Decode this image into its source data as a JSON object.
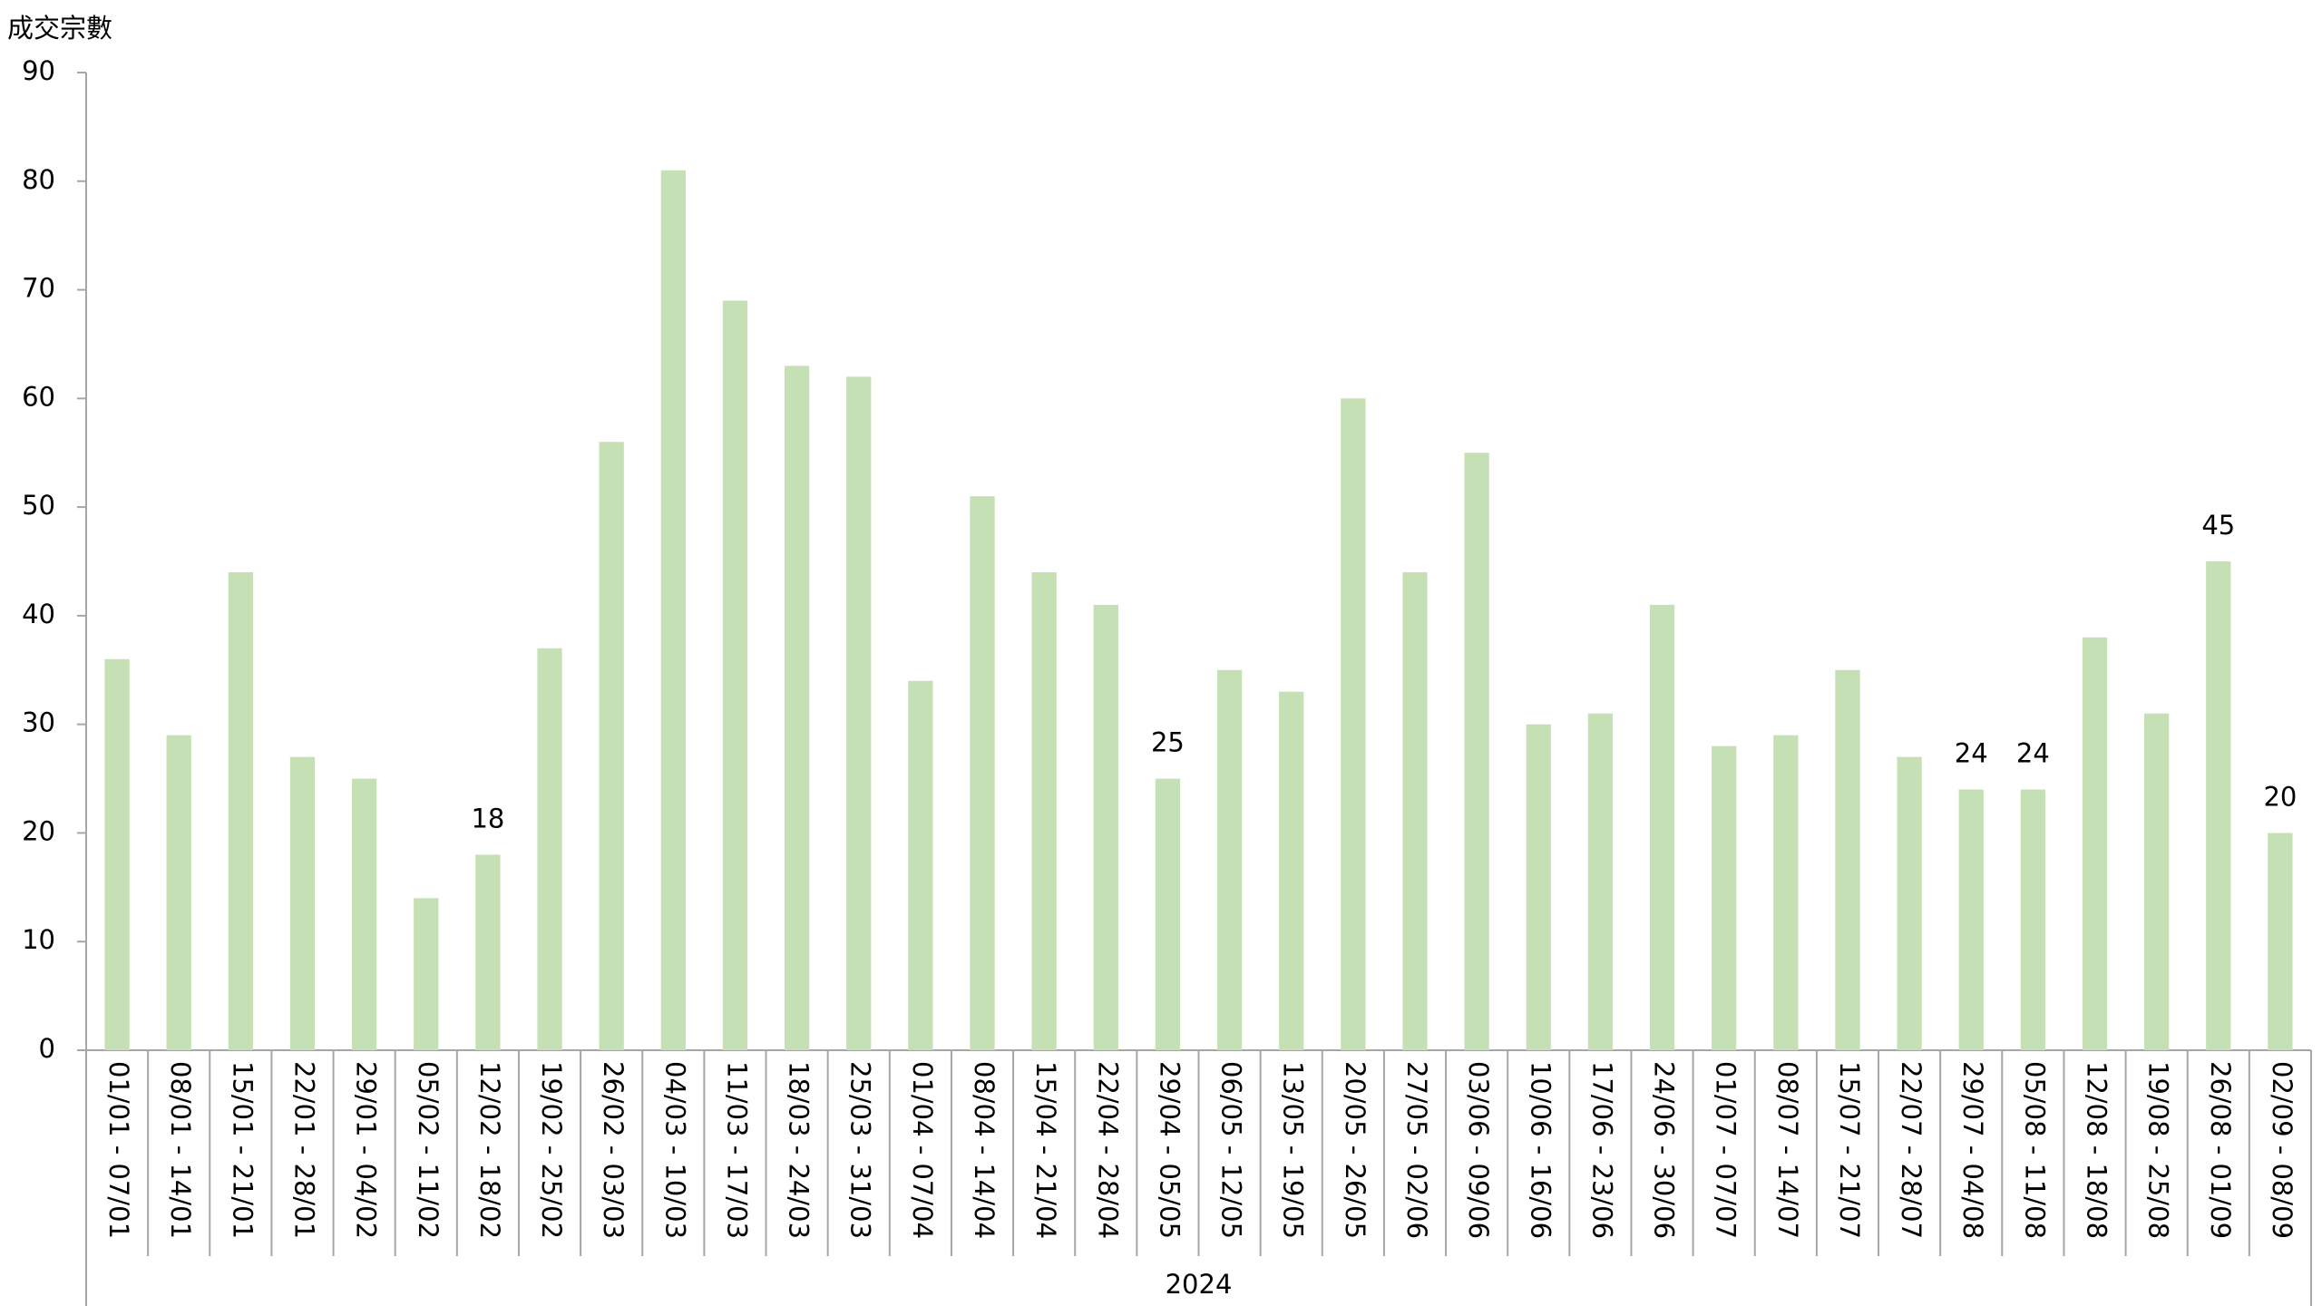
{
  "chart_data": {
    "type": "bar",
    "y_label": "成交宗數",
    "group_label": "2024",
    "categories": [
      "01/01 - 07/01",
      "08/01 - 14/01",
      "15/01 - 21/01",
      "22/01 - 28/01",
      "29/01 - 04/02",
      "05/02 - 11/02",
      "12/02 - 18/02",
      "19/02 - 25/02",
      "26/02 - 03/03",
      "04/03 - 10/03",
      "11/03 - 17/03",
      "18/03 - 24/03",
      "25/03 - 31/03",
      "01/04 - 07/04",
      "08/04 - 14/04",
      "15/04 - 21/04",
      "22/04 - 28/04",
      "29/04 - 05/05",
      "06/05 - 12/05",
      "13/05 - 19/05",
      "20/05 - 26/05",
      "27/05 - 02/06",
      "03/06 - 09/06",
      "10/06 - 16/06",
      "17/06 - 23/06",
      "24/06 - 30/06",
      "01/07 - 07/07",
      "08/07 - 14/07",
      "15/07 - 21/07",
      "22/07 - 28/07",
      "29/07 - 04/08",
      "05/08 - 11/08",
      "12/08 - 18/08",
      "19/08 - 25/08",
      "26/08 - 01/09",
      "02/09 - 08/09"
    ],
    "values": [
      36,
      29,
      44,
      27,
      25,
      14,
      18,
      37,
      56,
      81,
      69,
      63,
      62,
      34,
      51,
      44,
      41,
      25,
      35,
      33,
      60,
      44,
      55,
      30,
      31,
      41,
      28,
      29,
      35,
      27,
      24,
      24,
      38,
      31,
      45,
      20
    ],
    "value_labels": [
      null,
      null,
      null,
      null,
      null,
      null,
      "18",
      null,
      null,
      null,
      null,
      null,
      null,
      null,
      null,
      null,
      null,
      "25",
      null,
      null,
      null,
      null,
      null,
      null,
      null,
      null,
      null,
      null,
      null,
      null,
      "24",
      "24",
      null,
      null,
      "45",
      "20"
    ],
    "color": "#c5e0b4",
    "ylim": [
      0,
      90
    ],
    "yticks": [
      0,
      10,
      20,
      30,
      40,
      50,
      60,
      70,
      80,
      90
    ],
    "grid": false
  }
}
